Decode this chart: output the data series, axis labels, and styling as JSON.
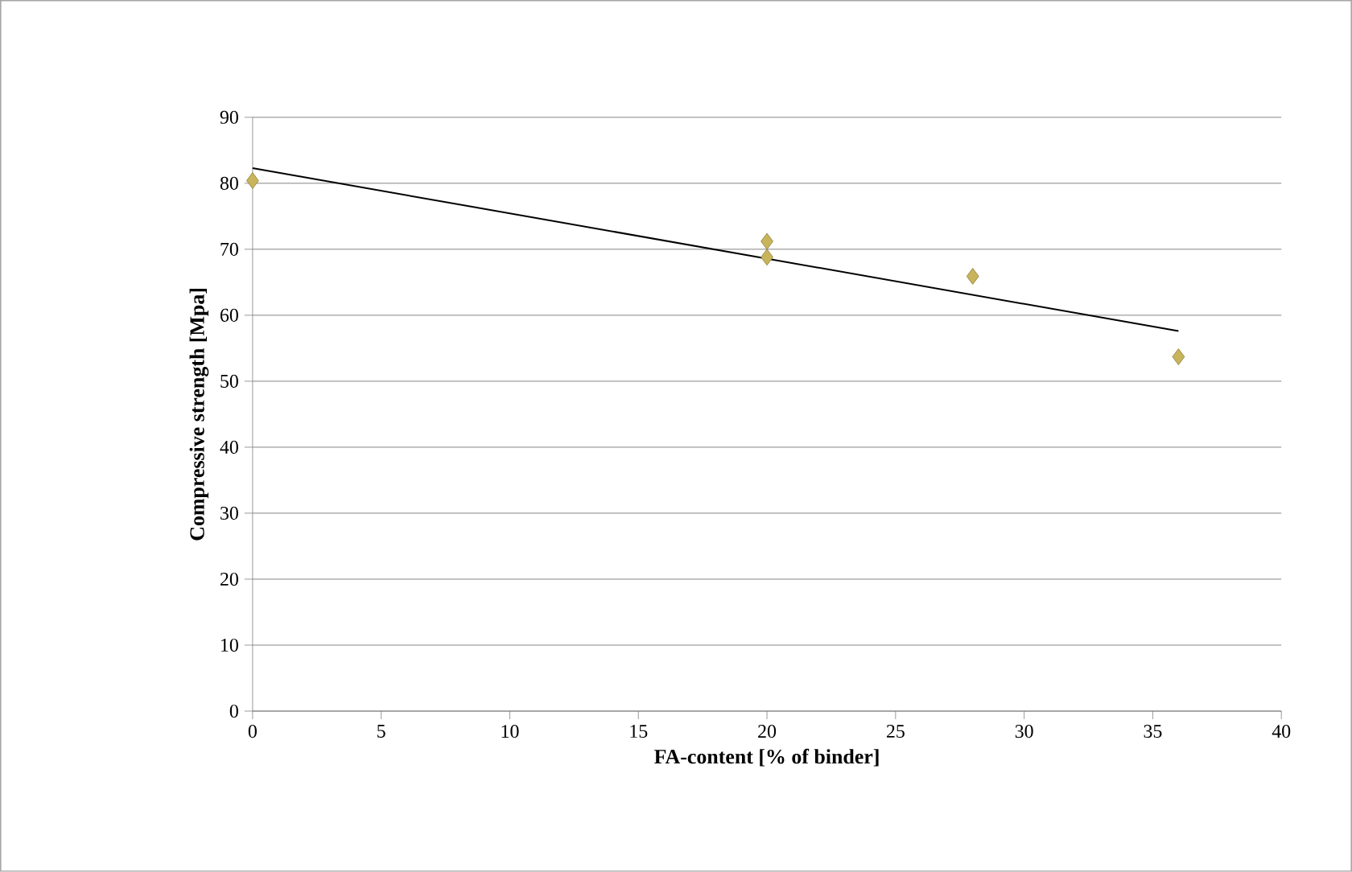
{
  "chart_data": {
    "type": "scatter",
    "xlabel": "FA-content [% of binder]",
    "ylabel": "Compressive strength [Mpa]",
    "xlim": [
      0,
      40
    ],
    "xticks": [
      0,
      5,
      10,
      15,
      20,
      25,
      30,
      35,
      40
    ],
    "ylim": [
      0,
      90
    ],
    "yticks": [
      0,
      10,
      20,
      30,
      40,
      50,
      60,
      70,
      80,
      90
    ],
    "grid": "y",
    "series": [
      {
        "color": "#c8b45a",
        "marker": "diamond",
        "x": [
          0,
          20,
          20,
          28,
          36
        ],
        "values": [
          80.4,
          71.2,
          68.8,
          65.9,
          53.7
        ]
      },
      {
        "type": "line",
        "color": "#000000",
        "marker": "none",
        "line_style": "solid",
        "x": [
          0,
          36
        ],
        "values": [
          82.3,
          57.6
        ]
      }
    ]
  }
}
